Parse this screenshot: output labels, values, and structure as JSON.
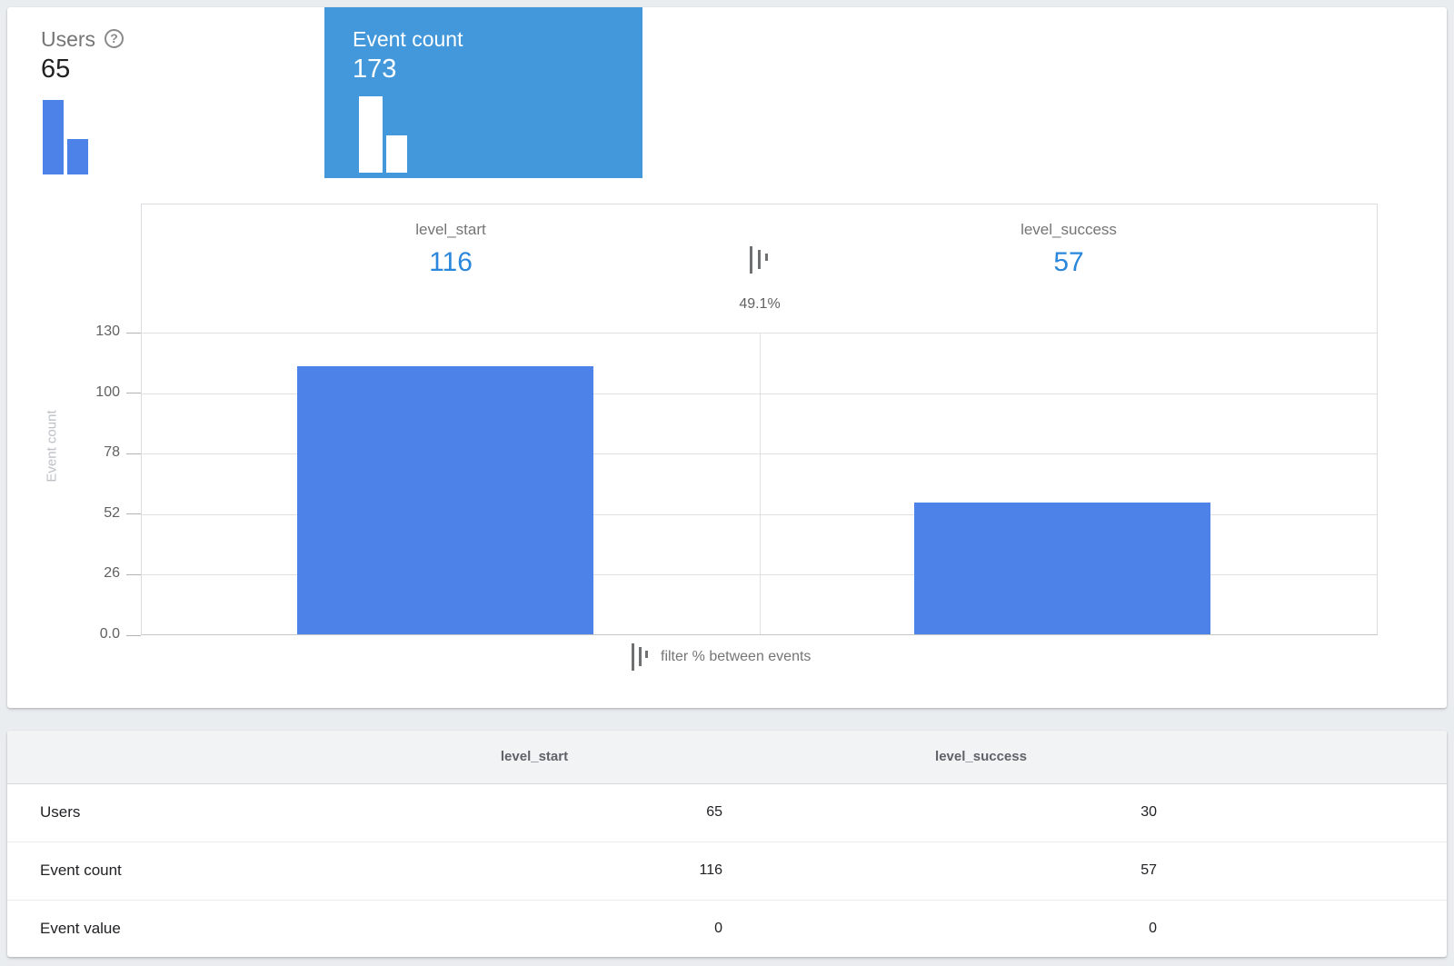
{
  "metric_cards": {
    "users": {
      "label": "Users",
      "value": "65",
      "help": "?"
    },
    "event_count": {
      "label": "Event count",
      "value": "173"
    }
  },
  "funnel": {
    "steps": [
      {
        "name": "level_start",
        "count": "116"
      },
      {
        "name": "level_success",
        "count": "57"
      }
    ],
    "between_percent": "49.1%",
    "legend": "filter % between events",
    "yaxis": {
      "label": "Event count",
      "ticks": [
        "130",
        "100",
        "78",
        "52",
        "26",
        "0.0"
      ]
    }
  },
  "chart_data": {
    "type": "bar",
    "categories": [
      "level_start",
      "level_success"
    ],
    "values": [
      116,
      57
    ],
    "title": "",
    "xlabel": "",
    "ylabel": "Event count",
    "ylim": [
      0,
      130
    ],
    "ytick_labels": [
      "0.0",
      "26",
      "52",
      "78",
      "100",
      "130"
    ],
    "grid": true,
    "legend_position": "none",
    "bar_color": "#4d82e8",
    "annotations": [
      {
        "between": [
          "level_start",
          "level_success"
        ],
        "label": "49.1%"
      }
    ]
  },
  "table": {
    "columns": [
      "level_start",
      "level_success"
    ],
    "rows": [
      {
        "label": "Users",
        "values": [
          "65",
          "30"
        ]
      },
      {
        "label": "Event count",
        "values": [
          "116",
          "57"
        ]
      },
      {
        "label": "Event value",
        "values": [
          "0",
          "0"
        ]
      }
    ]
  },
  "colors": {
    "selected_card_bg": "#4298db",
    "bar_fill": "#4d82e8",
    "metric_value_blue": "#2b87db",
    "page_bg": "#eaedf0"
  }
}
